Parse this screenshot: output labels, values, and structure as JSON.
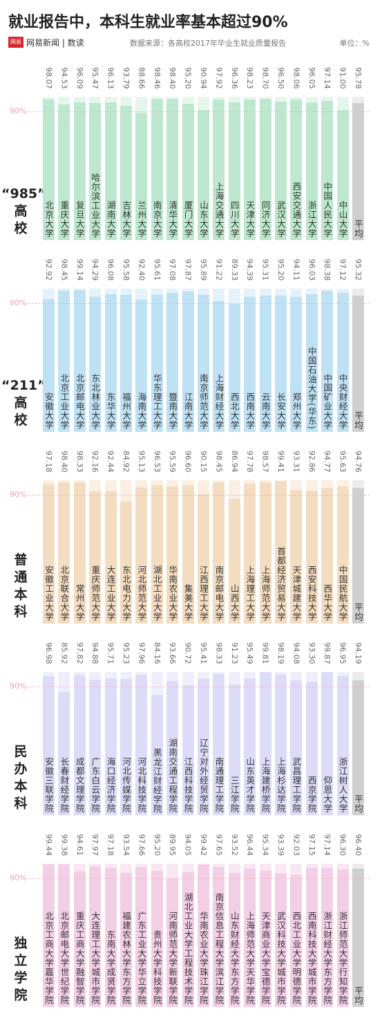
{
  "header": {
    "title": "就业报告中，本科生就业率基本超过90%",
    "logo": "网易",
    "brand": "网易新闻",
    "column": "数读",
    "source": "数据来源：各高校2017年毕业生就业质量报告",
    "unit": "单位：%"
  },
  "chart_data": [
    {
      "type": "bar",
      "title": [
        "“985”",
        "高",
        "校"
      ],
      "color": "#bde8cf",
      "track_color": "#e6f6ec",
      "average_color": "#cfcfcf",
      "ylim": [
        0,
        100
      ],
      "reference_line": {
        "value": 90,
        "label": "90%"
      },
      "categories": [
        "北京大学",
        "重庆大学",
        "复旦大学",
        "哈尔滨工业大学",
        "湖南大学",
        "吉林大学",
        "兰州大学",
        "南京大学",
        "清华大学",
        "厦门大学",
        "山东大学",
        "上海交通大学",
        "四川大学",
        "天津大学",
        "同济大学",
        "武汉大学",
        "西安交通大学",
        "浙江大学",
        "中国人民大学",
        "中山大学",
        "平均"
      ],
      "values": [
        98.07,
        94.53,
        96.09,
        95.47,
        96.13,
        93.79,
        88.66,
        98.46,
        98.4,
        95.2,
        90.94,
        97.92,
        96.36,
        98.23,
        98.7,
        96.5,
        98.06,
        96.05,
        97.14,
        91.0,
        95.78
      ],
      "value_labels": [
        "98.07",
        "94.53",
        "96.09",
        "95.47",
        "96.13",
        "93.79",
        "88.66",
        "98.46",
        "98.40",
        "95.20",
        "90.94",
        "97.92",
        "96.36",
        "98.23",
        "98.70",
        "96.50",
        "98.06",
        "96.05",
        "97.14",
        "91.00",
        "95.78"
      ]
    },
    {
      "type": "bar",
      "title": [
        "“211”",
        "高",
        "校"
      ],
      "color": "#bfe1f4",
      "track_color": "#e5f2fa",
      "average_color": "#cfcfcf",
      "ylim": [
        0,
        100
      ],
      "reference_line": {
        "value": 90,
        "label": "90%"
      },
      "categories": [
        "安徽大学",
        "北京工业大学",
        "北京邮电大学",
        "东北林业大学",
        "东华大学",
        "福州大学",
        "海南大学",
        "华东理工大学",
        "暨南大学",
        "江南大学",
        "南京师范大学",
        "上海财经大学",
        "西北大学",
        "西南大学",
        "云南大学",
        "长安大学",
        "郑州大学",
        "中国石油大学(华东)",
        "中国矿业大学",
        "中央财经大学",
        "平均"
      ],
      "values": [
        92.92,
        98.45,
        99.14,
        94.29,
        96.08,
        95.58,
        92.4,
        95.61,
        97.08,
        97.87,
        95.89,
        91.22,
        89.33,
        94.39,
        95.31,
        95.2,
        94.11,
        96.03,
        98.38,
        97.12,
        95.32
      ],
      "value_labels": [
        "92.92",
        "98.45",
        "99.14",
        "94.29",
        "96.08",
        "95.58",
        "92.40",
        "95.61",
        "97.08",
        "97.87",
        "95.89",
        "91.22",
        "89.33",
        "94.39",
        "95.31",
        "95.20",
        "94.11",
        "96.03",
        "98.38",
        "97.12",
        "95.32"
      ]
    },
    {
      "type": "bar",
      "title": [
        "普",
        "通",
        "本",
        "科"
      ],
      "color": "#f3dcc0",
      "track_color": "#faefe2",
      "average_color": "#cfcfcf",
      "ylim": [
        0,
        100
      ],
      "reference_line": {
        "value": 90,
        "label": "90%"
      },
      "categories": [
        "安徽工业大学",
        "北京联合大学",
        "常州大学",
        "重庆师范大学",
        "大连工业大学",
        "东北电力大学",
        "河北师范大学",
        "湖北工业大学",
        "华南农业大学",
        "集美大学",
        "江西理工大学",
        "南京邮电大学",
        "山西大学",
        "上海理工大学",
        "上海师范大学",
        "首都经济贸易大学",
        "天津城建大学",
        "西安科技大学",
        "西华大学",
        "中国民航大学",
        "平均"
      ],
      "values": [
        97.18,
        98.4,
        98.33,
        92.16,
        92.44,
        84.92,
        95.13,
        96.53,
        95.59,
        96.6,
        90.15,
        98.45,
        86.94,
        97.78,
        98.57,
        99.41,
        93.31,
        92.86,
        94.77,
        95.63,
        94.76
      ],
      "value_labels": [
        "97.18",
        "98.40",
        "98.33",
        "92.16",
        "92.44",
        "84.92",
        "95.13",
        "96.53",
        "95.59",
        "96.60",
        "90.15",
        "98.45",
        "86.94",
        "97.78",
        "98.57",
        "99.41",
        "93.31",
        "92.86",
        "94.77",
        "95.63",
        "94.76"
      ]
    },
    {
      "type": "bar",
      "title": [
        "民",
        "办",
        "本",
        "科"
      ],
      "color": "#dcdcf8",
      "track_color": "#efeffc",
      "average_color": "#cfcfcf",
      "ylim": [
        0,
        100
      ],
      "reference_line": {
        "value": 90,
        "label": "90%"
      },
      "categories": [
        "安徽三联学院",
        "长春财经学院",
        "成都文理学院",
        "广东白云学院",
        "海口经济学院",
        "河北传媒学院",
        "河北科技学院",
        "黑龙江财经学院",
        "湖南交通工程学院",
        "江西科技学院",
        "辽宁对外经贸学院",
        "南通理工学院",
        "三江学院",
        "山东英才学院",
        "上海建桥学院",
        "上海杉达学院",
        "武昌理工学院",
        "西京学院",
        "仰恩大学",
        "浙江树人大学",
        "平均"
      ],
      "values": [
        96.98,
        85.92,
        97.82,
        94.88,
        95.71,
        95.23,
        97.96,
        84.16,
        93.66,
        90.72,
        95.41,
        98.33,
        91.23,
        95.49,
        99.81,
        98.19,
        94.08,
        93.3,
        99.87,
        96.95,
        94.19
      ],
      "value_labels": [
        "96.98",
        "85.92",
        "97.82",
        "94.88",
        "95.71",
        "95.23",
        "97.96",
        "84.16",
        "93.66",
        "90.72",
        "95.41",
        "98.33",
        "91.23",
        "95.49",
        "99.81",
        "98.19",
        "94.08",
        "93.30",
        "99.87",
        "96.95",
        "94.19"
      ]
    },
    {
      "type": "bar",
      "title": [
        "独",
        "立",
        "学",
        "院"
      ],
      "color": "#f3cfe5",
      "track_color": "#f9e8f2",
      "average_color": "#cfcfcf",
      "ylim": [
        0,
        100
      ],
      "reference_line": {
        "value": 90,
        "label": "90%"
      },
      "categories": [
        "北京工商大学嘉华学院",
        "北京邮电大学世纪学院",
        "重庆工商大学融智学院",
        "大连理工大学城市学院",
        "东南大学成贤学院",
        "福建农林大学东方学院",
        "广东工业大学华立学院",
        "贵州大学科技学院",
        "河南师范大学新联学院",
        "湖北工业大学工程技术学院",
        "华南农业大学珠江学院",
        "南京信息工程大学滨江学院",
        "山东财经大学东方学院",
        "上海师范大学天华学院",
        "天津商业大学宝德学院",
        "武汉科技大学城市学院",
        "西北工业大学明德学院",
        "西南科技大学城市学院",
        "浙江财经大学东方学院",
        "浙江师范大学行知学院",
        "平均"
      ],
      "values": [
        99.44,
        99.38,
        94.61,
        97.97,
        97.18,
        93.54,
        97.66,
        95.2,
        89.95,
        94.05,
        99.42,
        97.65,
        93.52,
        96.44,
        95.34,
        93.39,
        92.03,
        97.15,
        97.14,
        96.3,
        96.4
      ],
      "value_labels": [
        "99.44",
        "99.38",
        "94.61",
        "97.97",
        "97.18",
        "93.54",
        "97.66",
        "95.20",
        "89.95",
        "94.05",
        "99.42",
        "97.65",
        "93.52",
        "96.44",
        "95.34",
        "93.39",
        "92.03",
        "97.15",
        "97.14",
        "96.30",
        "96.40"
      ]
    }
  ]
}
